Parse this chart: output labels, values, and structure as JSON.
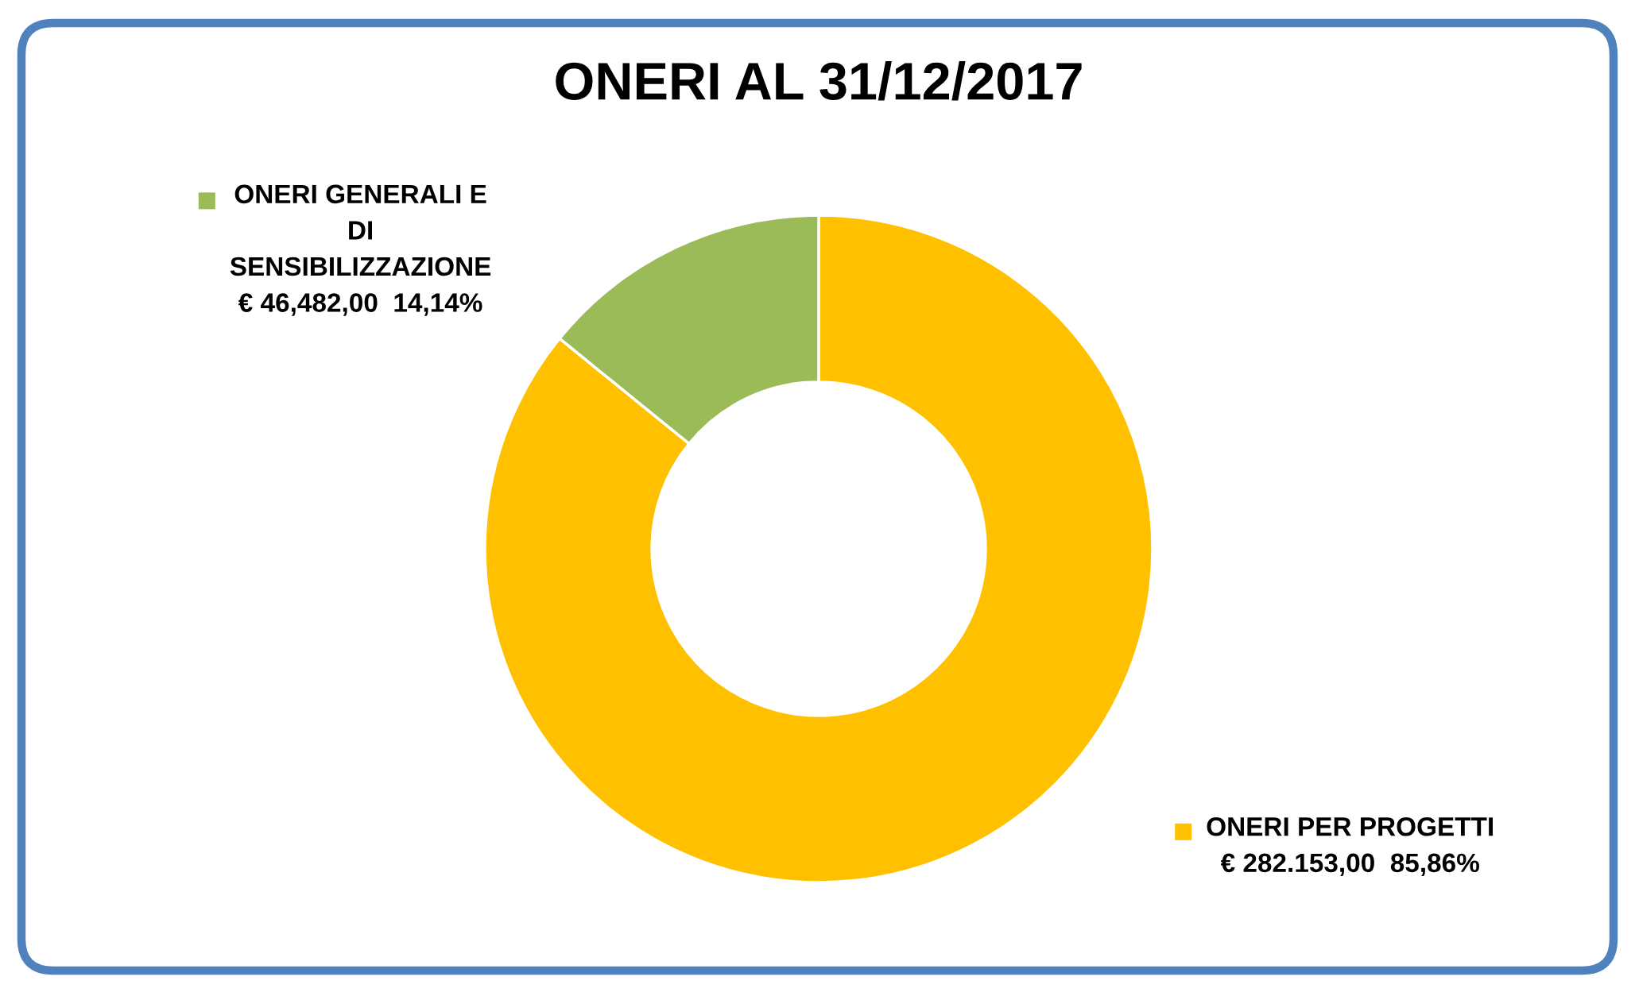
{
  "chart_data": {
    "type": "donut",
    "title": "ONERI AL 31/12/2017",
    "categories": [
      "ONERI PER PROGETTI",
      "ONERI GENERALI E\nDI\nSENSIBILIZZAZIONE"
    ],
    "values": [
      282153,
      46482
    ],
    "colors": [
      "#ffc000",
      "#9bbb59"
    ],
    "value_labels": [
      "€ 282.153,00  85,86%",
      "€ 46,482,00  14,14%"
    ],
    "legend": "top left"
  }
}
